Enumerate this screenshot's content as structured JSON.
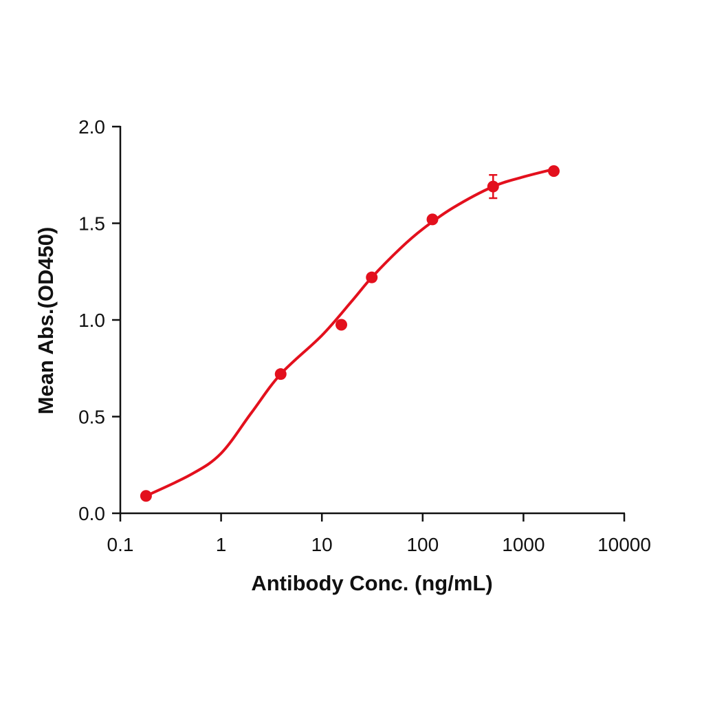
{
  "chart_data": {
    "type": "scatter",
    "x_label": "Antibody Conc. (ng/mL)",
    "y_label": "Mean Abs.(OD450)",
    "x_log": true,
    "xlim": [
      0.1,
      10000
    ],
    "xticks": [
      0.1,
      1,
      10,
      100,
      1000,
      10000
    ],
    "ylim": [
      0,
      2
    ],
    "yticks": [
      {
        "value": 0,
        "label": "0.0"
      },
      0.5,
      {
        "value": 1,
        "label": "1.0"
      },
      1.5,
      {
        "value": 2,
        "label": "2.0"
      }
    ],
    "series": [
      {
        "color": "#e3101d",
        "x": [
          0.18,
          3.9,
          15.6,
          31.25,
          125,
          500,
          2000
        ],
        "values": [
          0.09,
          0.72,
          0.975,
          1.22,
          1.52,
          1.69,
          1.77
        ],
        "errors": [
          0,
          0,
          0,
          0,
          0,
          0.06,
          0
        ]
      },
      {
        "type": "line",
        "color": "#e3101d",
        "x": [
          0.18,
          0.5,
          1,
          2,
          3.9,
          10,
          20,
          31.25,
          60,
          100,
          200,
          500,
          1000,
          2000
        ],
        "values": [
          0.09,
          0.2,
          0.31,
          0.52,
          0.72,
          0.92,
          1.1,
          1.22,
          1.37,
          1.47,
          1.58,
          1.69,
          1.74,
          1.78
        ]
      }
    ]
  }
}
